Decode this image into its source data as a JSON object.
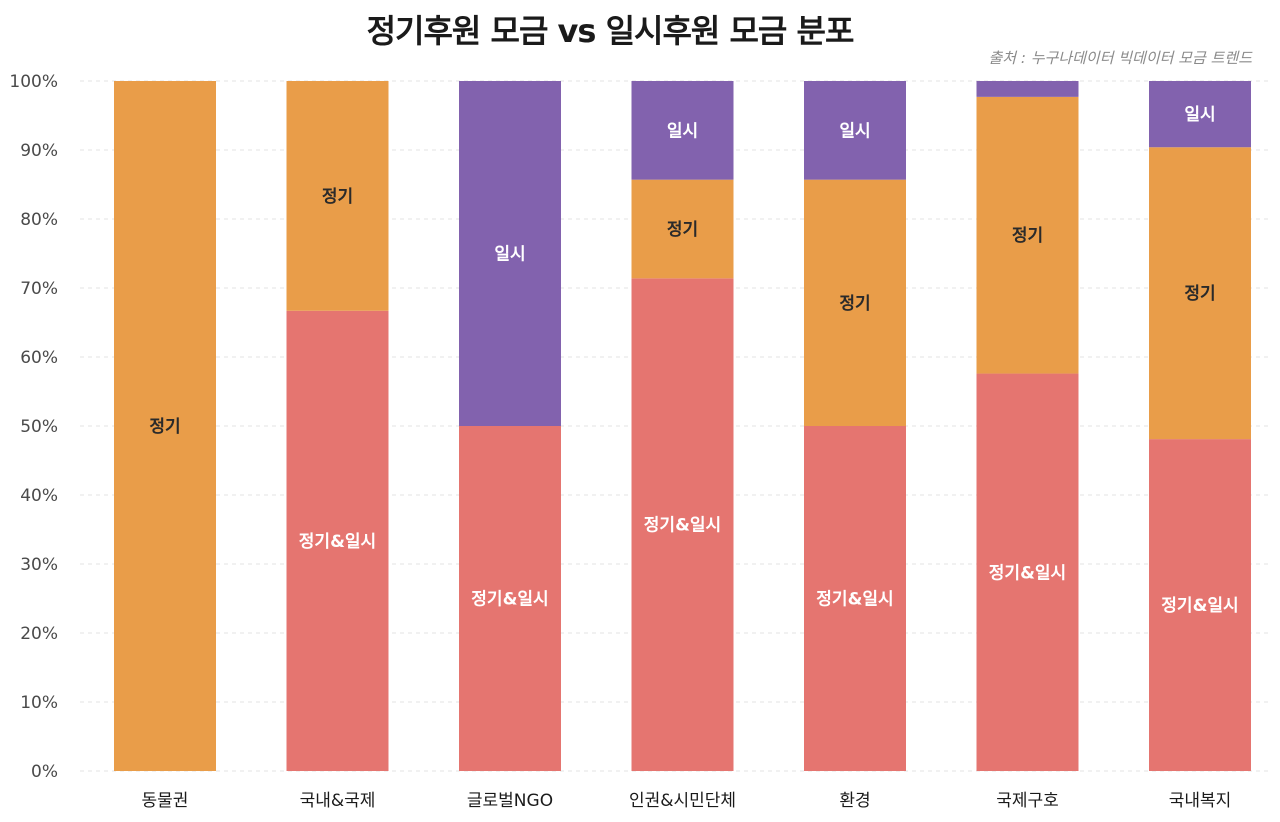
{
  "title": "정기후원 모금 vs 일시후원 모금 분포",
  "source": "출처 : 누구나데이터 빅데이터 모금 트렌드",
  "colors": {
    "regular_and_onetime": "#E57570",
    "regular": "#E99D49",
    "onetime": "#8262AE",
    "grid": "#e3e3e3"
  },
  "chart_data": {
    "type": "bar",
    "stacked": true,
    "percent": true,
    "title": "정기후원 모금 vs 일시후원 모금 분포",
    "categories": [
      "동물권",
      "국내&국제",
      "글로벌NGO",
      "인권&시민단체",
      "환경",
      "국제구호",
      "국내복지"
    ],
    "series": [
      {
        "name": "정기&일시",
        "color": "#E57570",
        "values": [
          0,
          66.7,
          50,
          71.4,
          50,
          57.6,
          48.1
        ]
      },
      {
        "name": "정기",
        "color": "#E99D49",
        "values": [
          100,
          33.3,
          0,
          14.3,
          35.7,
          40.1,
          42.3
        ]
      },
      {
        "name": "일시",
        "color": "#8262AE",
        "values": [
          0,
          0,
          50,
          14.3,
          14.3,
          2.3,
          9.6
        ]
      }
    ],
    "segment_labels": {
      "정기&일시": [
        "",
        "정기&일시",
        "정기&일시",
        "정기&일시",
        "정기&일시",
        "정기&일시",
        "정기&일시"
      ],
      "정기": [
        "정기",
        "정기",
        "",
        "정기",
        "정기",
        "정기",
        "정기"
      ],
      "일시": [
        "",
        "",
        "일시",
        "일시",
        "일시",
        "",
        "일시"
      ]
    },
    "ylim": [
      0,
      100
    ],
    "yticks": [
      "0%",
      "10%",
      "20%",
      "30%",
      "40%",
      "50%",
      "60%",
      "70%",
      "80%",
      "90%",
      "100%"
    ],
    "grid": true,
    "legend": "none"
  }
}
